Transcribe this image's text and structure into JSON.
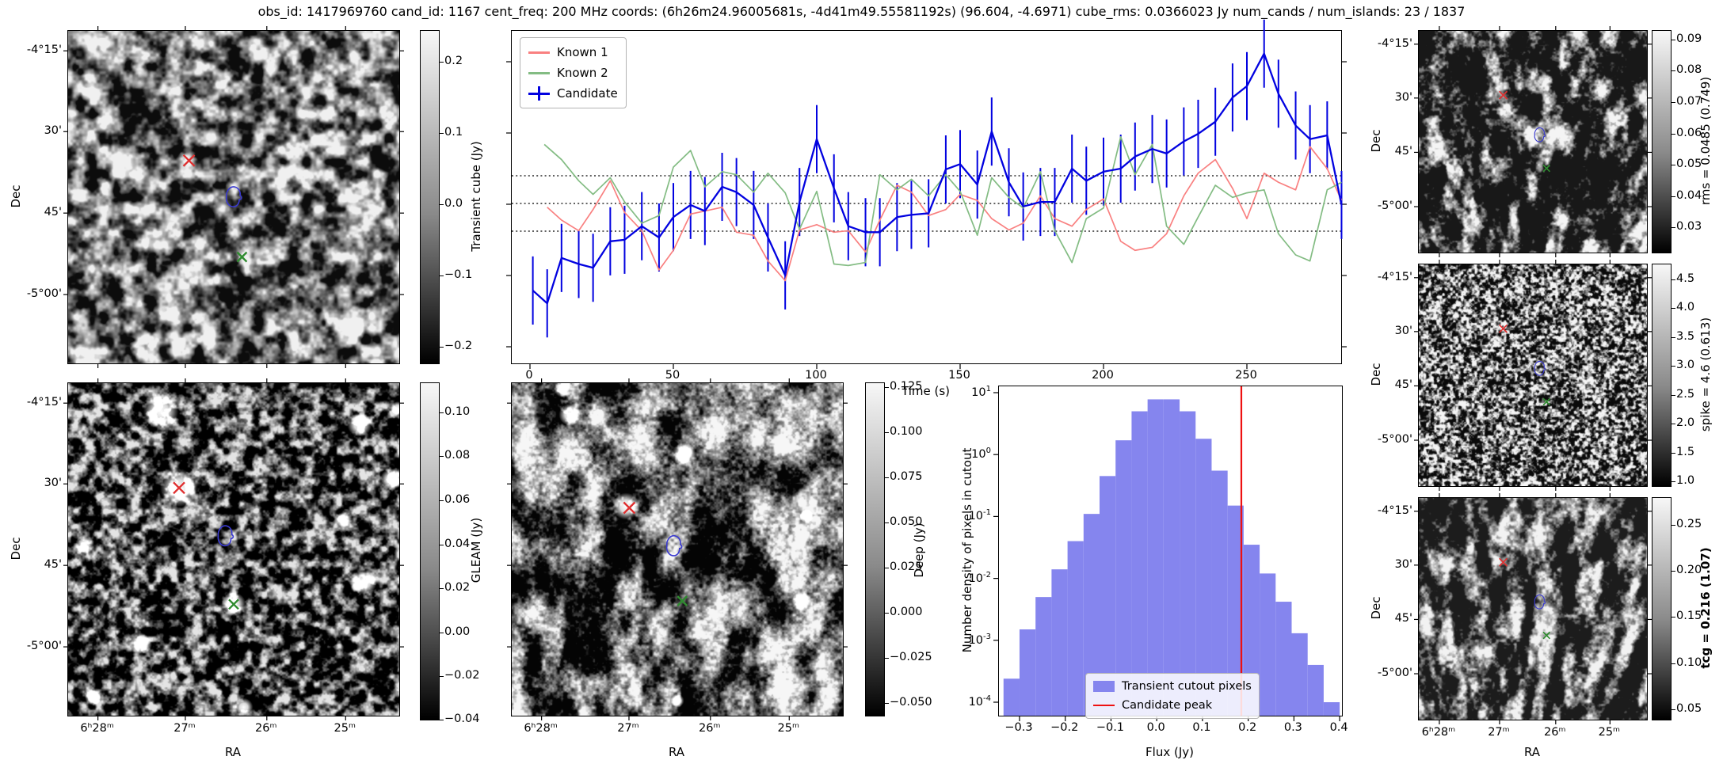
{
  "title": "obs_id: 1417969760 cand_id: 1167 cent_freq: 200 MHz coords: (6h26m24.96005681s, -4d41m49.55581192s) (96.604, -4.6971) cube_rms: 0.0366023 Jy num_cands / num_islands: 23 / 1837",
  "axis": {
    "dec_label": "Dec",
    "ra_label": "RA",
    "dec_ticks": [
      "-4°15'",
      "30'",
      "45'",
      "-5°00'"
    ],
    "ra_ticks": [
      "6ʰ28ᵐ",
      "27ᵐ",
      "26ᵐ",
      "25ᵐ"
    ]
  },
  "colorbars": {
    "transient_cube": {
      "label": "Transient cube (Jy)",
      "ticks": [
        "0.2",
        "0.1",
        "0.0",
        "−0.1",
        "−0.2"
      ]
    },
    "gleam": {
      "label": "GLEAM (Jy)",
      "ticks": [
        "0.10",
        "0.08",
        "0.06",
        "0.04",
        "0.02",
        "0.00",
        "−0.02",
        "−0.04"
      ]
    },
    "deep": {
      "label": "Deep (Jy)",
      "ticks": [
        "0.125",
        "0.100",
        "0.075",
        "0.050",
        "0.025",
        "0.000",
        "−0.025",
        "−0.050"
      ]
    },
    "rms": {
      "label": "rms = 0.0485 (0.749)",
      "ticks": [
        "0.09",
        "0.08",
        "0.07",
        "0.06",
        "0.05",
        "0.04",
        "0.03"
      ]
    },
    "spike": {
      "label": "spike = 4.6 (0.613)",
      "ticks": [
        "4.5",
        "4.0",
        "3.5",
        "3.0",
        "2.5",
        "2.0",
        "1.5",
        "1.0"
      ]
    },
    "tcg": {
      "label": "tcg = 0.216 (1.07)",
      "bold": true,
      "ticks": [
        "0.25",
        "0.20",
        "0.15",
        "0.10",
        "0.05"
      ]
    }
  },
  "markers": {
    "transient_cube": {
      "red_cross": [
        0.365,
        0.39
      ],
      "contour": [
        0.5,
        0.5
      ],
      "green_cross": [
        0.525,
        0.68
      ]
    },
    "gleam": {
      "red_cross": [
        0.335,
        0.315
      ],
      "contour": [
        0.475,
        0.46
      ],
      "green_cross": [
        0.5,
        0.665
      ]
    },
    "deep": {
      "red_cross": [
        0.355,
        0.375
      ],
      "contour": [
        0.49,
        0.49
      ],
      "green_cross": [
        0.515,
        0.655
      ]
    },
    "rms": {
      "red_cross": [
        0.37,
        0.29
      ],
      "contour": [
        0.53,
        0.47
      ],
      "green_cross": [
        0.56,
        0.62
      ]
    },
    "spike": {
      "red_cross": [
        0.37,
        0.29
      ],
      "contour": [
        0.53,
        0.47
      ],
      "green_cross": [
        0.56,
        0.62
      ]
    },
    "tcg": {
      "red_cross": [
        0.37,
        0.29
      ],
      "contour": [
        0.53,
        0.47
      ],
      "green_cross": [
        0.56,
        0.62
      ]
    }
  },
  "gleam_sources": [
    [
      0.28,
      0.085,
      13
    ],
    [
      0.88,
      0.125,
      9
    ],
    [
      0.975,
      0.29,
      8
    ],
    [
      0.335,
      0.315,
      14
    ],
    [
      0.05,
      0.485,
      7
    ],
    [
      0.835,
      0.41,
      6
    ],
    [
      0.895,
      0.6,
      9
    ],
    [
      0.5,
      0.665,
      9
    ],
    [
      0.225,
      0.785,
      7
    ],
    [
      0.075,
      0.945,
      6
    ],
    [
      0.53,
      0.975,
      7
    ],
    [
      0.995,
      0.075,
      5
    ]
  ],
  "deep_sources": [
    [
      0.175,
      0.095,
      8
    ],
    [
      0.155,
      0.015,
      7
    ],
    [
      0.52,
      0.215,
      9
    ],
    [
      0.345,
      0.37,
      10
    ],
    [
      0.89,
      0.4,
      5
    ],
    [
      0.875,
      0.655,
      7
    ],
    [
      0.5,
      0.955,
      5
    ]
  ],
  "chart_data": [
    {
      "type": "line",
      "name": "candidate-lightcurve",
      "xlabel": "Time (s)",
      "ylabel": "",
      "xticks": [
        0,
        50,
        100,
        150,
        200,
        250
      ],
      "xlim": [
        -7,
        288
      ],
      "ylim_jy": [
        -0.212,
        0.228
      ],
      "reference_lines_jy": [
        0.0366,
        0,
        -0.0366
      ],
      "legend_position": "upper left",
      "series": [
        {
          "name": "Known 1",
          "color": "#f98080",
          "points": [
            [
              6,
              -0.005
            ],
            [
              11,
              -0.022
            ],
            [
              17,
              -0.036
            ],
            [
              22,
              -0.008
            ],
            [
              28,
              0.03
            ],
            [
              33,
              -0.012
            ],
            [
              39,
              -0.036
            ],
            [
              45,
              -0.088
            ],
            [
              50,
              -0.062
            ],
            [
              56,
              -0.014
            ],
            [
              61,
              -0.01
            ],
            [
              67,
              -0.005
            ],
            [
              72,
              -0.038
            ],
            [
              78,
              -0.042
            ],
            [
              83,
              -0.076
            ],
            [
              89,
              -0.102
            ],
            [
              94,
              -0.035
            ],
            [
              100,
              -0.028
            ],
            [
              106,
              -0.038
            ],
            [
              111,
              -0.036
            ],
            [
              117,
              -0.064
            ],
            [
              122,
              -0.022
            ],
            [
              128,
              0.024
            ],
            [
              133,
              0.015
            ],
            [
              139,
              -0.016
            ],
            [
              145,
              -0.008
            ],
            [
              150,
              0.012
            ],
            [
              156,
              0.004
            ],
            [
              161,
              -0.02
            ],
            [
              167,
              -0.035
            ],
            [
              172,
              -0.026
            ],
            [
              178,
              0.01
            ],
            [
              183,
              -0.02
            ],
            [
              189,
              -0.03
            ],
            [
              194,
              -0.008
            ],
            [
              200,
              0.006
            ],
            [
              206,
              -0.05
            ],
            [
              211,
              -0.062
            ],
            [
              217,
              -0.058
            ],
            [
              222,
              -0.04
            ],
            [
              228,
              0.01
            ],
            [
              233,
              0.04
            ],
            [
              239,
              0.058
            ],
            [
              245,
              0.02
            ],
            [
              250,
              -0.02
            ],
            [
              256,
              0.04
            ],
            [
              261,
              0.028
            ],
            [
              267,
              0.018
            ],
            [
              272,
              0.075
            ],
            [
              278,
              0.046
            ],
            [
              283,
              0.004
            ]
          ]
        },
        {
          "name": "Known 2",
          "color": "#83bc83",
          "points": [
            [
              5,
              0.078
            ],
            [
              11,
              0.058
            ],
            [
              17,
              0.03
            ],
            [
              22,
              0.012
            ],
            [
              28,
              0.034
            ],
            [
              33,
              0.002
            ],
            [
              39,
              -0.026
            ],
            [
              45,
              -0.016
            ],
            [
              50,
              0.048
            ],
            [
              56,
              0.07
            ],
            [
              61,
              0.022
            ],
            [
              67,
              0.042
            ],
            [
              72,
              0.038
            ],
            [
              78,
              0.015
            ],
            [
              83,
              0.04
            ],
            [
              89,
              0.014
            ],
            [
              94,
              -0.034
            ],
            [
              100,
              0.016
            ],
            [
              106,
              -0.08
            ],
            [
              111,
              -0.082
            ],
            [
              117,
              -0.078
            ],
            [
              122,
              0.038
            ],
            [
              128,
              0.018
            ],
            [
              133,
              0.032
            ],
            [
              139,
              0.01
            ],
            [
              145,
              0.038
            ],
            [
              150,
              0.016
            ],
            [
              156,
              -0.042
            ],
            [
              161,
              0.034
            ],
            [
              167,
              0.008
            ],
            [
              172,
              -0.006
            ],
            [
              178,
              0.042
            ],
            [
              183,
              -0.036
            ],
            [
              189,
              -0.078
            ],
            [
              194,
              -0.02
            ],
            [
              200,
              -0.006
            ],
            [
              206,
              0.088
            ],
            [
              211,
              0.038
            ],
            [
              217,
              0.078
            ],
            [
              222,
              -0.03
            ],
            [
              228,
              -0.054
            ],
            [
              233,
              -0.018
            ],
            [
              239,
              0.024
            ],
            [
              245,
              0.008
            ],
            [
              250,
              0.014
            ],
            [
              256,
              0.018
            ],
            [
              261,
              -0.04
            ],
            [
              267,
              -0.068
            ],
            [
              272,
              -0.076
            ],
            [
              278,
              0.018
            ],
            [
              283,
              0.028
            ]
          ]
        },
        {
          "name": "Candidate",
          "color": "#0202e0",
          "yerr_jy": 0.045,
          "points": [
            [
              1,
              -0.115
            ],
            [
              6,
              -0.132
            ],
            [
              11,
              -0.072
            ],
            [
              17,
              -0.08
            ],
            [
              22,
              -0.085
            ],
            [
              28,
              -0.05
            ],
            [
              33,
              -0.048
            ],
            [
              39,
              -0.03
            ],
            [
              45,
              -0.045
            ],
            [
              50,
              -0.018
            ],
            [
              56,
              -0.002
            ],
            [
              61,
              -0.01
            ],
            [
              67,
              0.022
            ],
            [
              72,
              0.015
            ],
            [
              78,
              -0.002
            ],
            [
              83,
              -0.045
            ],
            [
              89,
              -0.095
            ],
            [
              94,
              0.002
            ],
            [
              100,
              0.085
            ],
            [
              106,
              0.02
            ],
            [
              111,
              -0.03
            ],
            [
              117,
              -0.038
            ],
            [
              122,
              -0.038
            ],
            [
              128,
              -0.018
            ],
            [
              133,
              -0.015
            ],
            [
              139,
              -0.013
            ],
            [
              145,
              0.045
            ],
            [
              150,
              0.052
            ],
            [
              156,
              0.025
            ],
            [
              161,
              0.095
            ],
            [
              167,
              0.028
            ],
            [
              172,
              -0.004
            ],
            [
              178,
              0.002
            ],
            [
              183,
              0.002
            ],
            [
              189,
              0.046
            ],
            [
              194,
              0.03
            ],
            [
              200,
              0.042
            ],
            [
              206,
              0.046
            ],
            [
              211,
              0.062
            ],
            [
              217,
              0.072
            ],
            [
              222,
              0.066
            ],
            [
              228,
              0.082
            ],
            [
              233,
              0.092
            ],
            [
              239,
              0.108
            ],
            [
              245,
              0.14
            ],
            [
              250,
              0.155
            ],
            [
              256,
              0.198
            ],
            [
              261,
              0.145
            ],
            [
              267,
              0.103
            ],
            [
              272,
              0.085
            ],
            [
              278,
              0.09
            ],
            [
              283,
              -0.002
            ]
          ]
        }
      ]
    },
    {
      "type": "bar",
      "name": "flux-histogram",
      "xlabel": "Flux (Jy)",
      "ylabel": "Number density of pixels in cutout",
      "yscale": "log",
      "xticks": [
        "−0.3",
        "−0.2",
        "−0.1",
        "0.0",
        "0.1",
        "0.2",
        "0.3",
        "0.4"
      ],
      "ytick_exponents": [
        1,
        0,
        -1,
        -2,
        -3,
        -4
      ],
      "xlim": [
        -0.345,
        0.405
      ],
      "bar_color": "#8585ee",
      "line_color": "#ee1111",
      "bin_start": -0.335,
      "bin_width": 0.035,
      "values": [
        0.00024,
        0.0015,
        0.005,
        0.014,
        0.04,
        0.11,
        0.45,
        1.7,
        5.0,
        7.8,
        7.8,
        5.0,
        1.8,
        0.55,
        0.15,
        0.035,
        0.012,
        0.0042,
        0.0013,
        0.0004,
        0.0001
      ],
      "candidate_peak_jy": 0.185,
      "legend": [
        "Transient cutout pixels",
        "Candidate peak"
      ]
    }
  ]
}
